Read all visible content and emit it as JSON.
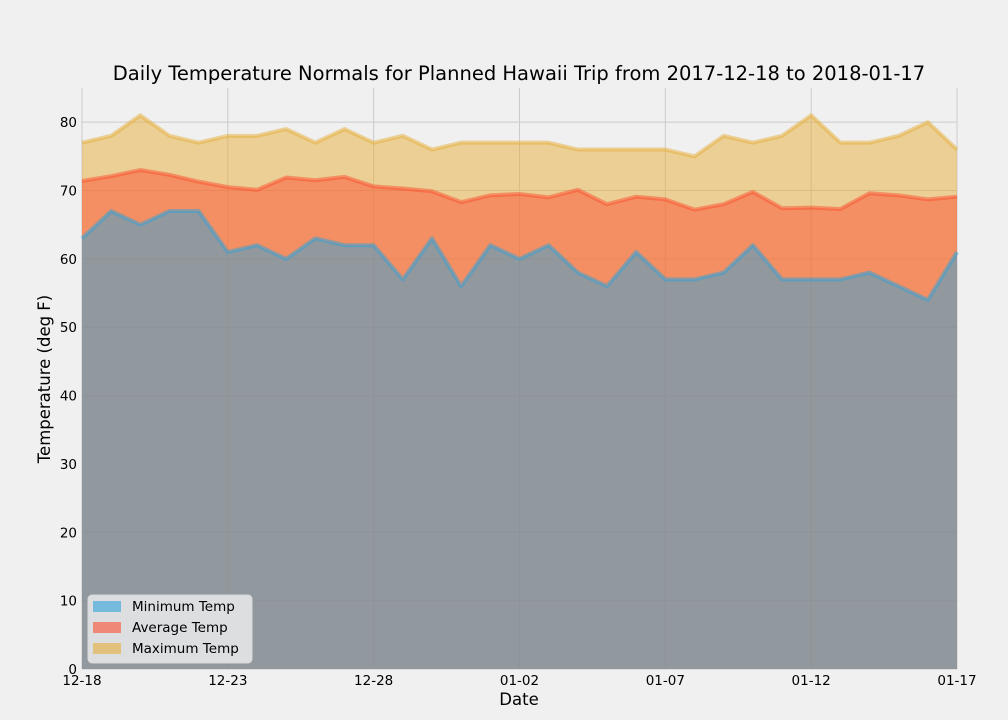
{
  "chart_data": {
    "type": "area",
    "title": "Daily Temperature Normals for Planned Hawaii Trip from 2017-12-18 to 2018-01-17",
    "xlabel": "Date",
    "ylabel": "Temperature (deg F)",
    "ylim": [
      0,
      85
    ],
    "yticks": [
      0,
      10,
      20,
      30,
      40,
      50,
      60,
      70,
      80
    ],
    "xtick_labels": [
      "12-18",
      "12-23",
      "12-28",
      "01-02",
      "01-07",
      "01-12",
      "01-17"
    ],
    "xtick_indices": [
      0,
      5,
      10,
      15,
      20,
      25,
      30
    ],
    "grid": true,
    "stacked": false,
    "legend_position": "lower-left",
    "x": [
      "12-18",
      "12-19",
      "12-20",
      "12-21",
      "12-22",
      "12-23",
      "12-24",
      "12-25",
      "12-26",
      "12-27",
      "12-28",
      "12-29",
      "12-30",
      "12-31",
      "01-01",
      "01-02",
      "01-03",
      "01-04",
      "01-05",
      "01-06",
      "01-07",
      "01-08",
      "01-09",
      "01-10",
      "01-11",
      "01-12",
      "01-13",
      "01-14",
      "01-15",
      "01-16",
      "01-17"
    ],
    "series": [
      {
        "name": "Minimum Temp",
        "color": "#30a2da",
        "values": [
          63,
          67,
          65,
          67,
          67,
          61,
          62,
          60,
          63,
          62,
          62,
          57,
          63,
          56,
          62,
          60,
          62,
          58,
          56,
          61,
          57,
          57,
          58,
          62,
          57,
          57,
          57,
          58,
          56,
          54,
          61
        ]
      },
      {
        "name": "Average Temp",
        "color": "#fc4f30",
        "values": [
          71.4,
          72.1,
          73.0,
          72.3,
          71.3,
          70.5,
          70.1,
          71.9,
          71.5,
          72.0,
          70.6,
          70.3,
          69.9,
          68.3,
          69.3,
          69.5,
          69.0,
          70.1,
          68.0,
          69.1,
          68.7,
          67.2,
          68.0,
          69.8,
          67.4,
          67.5,
          67.3,
          69.6,
          69.3,
          68.7,
          69.1
        ]
      },
      {
        "name": "Maximum Temp",
        "color": "#e5ae38",
        "values": [
          77,
          78,
          81,
          78,
          77,
          78,
          78,
          79,
          77,
          79,
          77,
          78,
          76,
          77,
          77,
          77,
          77,
          76,
          76,
          76,
          76,
          75,
          78,
          77,
          78,
          81,
          77,
          77,
          78,
          80,
          76
        ]
      }
    ]
  }
}
